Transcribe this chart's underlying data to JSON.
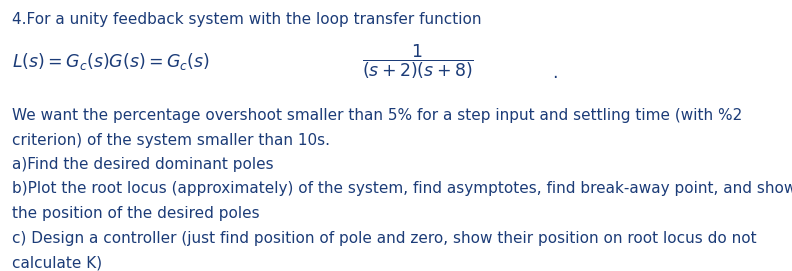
{
  "title_line": "4.For a unity feedback system with the loop transfer function",
  "body_text_line1": "We want the percentage overshoot smaller than 5% for a step input and settling time (with %2",
  "body_text_line2": "criterion) of the system smaller than 10s.",
  "body_text_line3": "a)Find the desired dominant poles",
  "body_text_line4": "b)Plot the root locus (approximately) of the system, find asymptotes, find break-away point, and show",
  "body_text_line5": "the position of the desired poles",
  "body_text_line6": "c) Design a controller (just find position of pole and zero, show their position on root locus do not",
  "body_text_line7": "calculate K)",
  "eq_left": "$L(s) = G_c(s)G(s) = G_c(s)$",
  "eq_frac": "$\\dfrac{1}{(s + 2)(s + 8)}$",
  "eq_dot": ".",
  "background_color": "#ffffff",
  "text_color": "#1c3c78",
  "title_fontsize": 11.0,
  "body_fontsize": 11.0,
  "eq_fontsize": 12.5,
  "fig_width": 7.92,
  "fig_height": 2.71,
  "dpi": 100
}
